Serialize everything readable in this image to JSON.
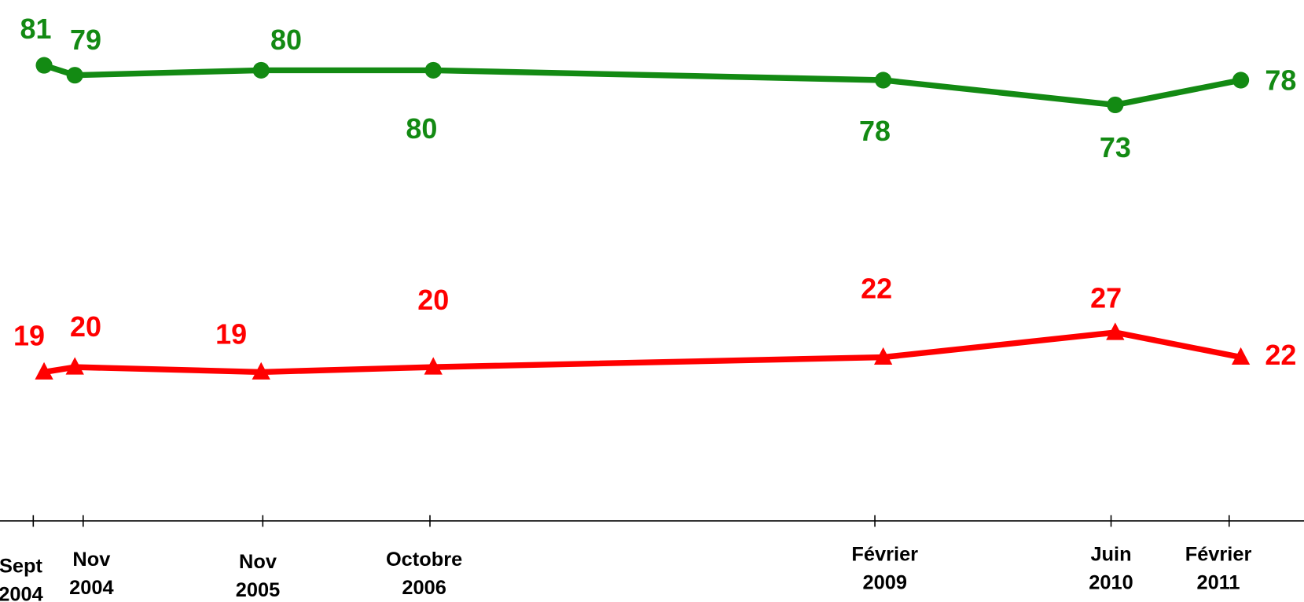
{
  "chart_data": {
    "type": "line",
    "categories": [
      "Sept 2004",
      "Nov 2004",
      "Nov 2005",
      "Octobre 2006",
      "Février 2009",
      "Juin 2010",
      "Février 2011"
    ],
    "series": [
      {
        "color": "#138a13",
        "marker": "circle",
        "values": [
          81,
          79,
          80,
          80,
          78,
          73,
          78
        ]
      },
      {
        "color": "#ff0000",
        "marker": "triangle",
        "values": [
          19,
          20,
          19,
          20,
          22,
          27,
          22
        ]
      }
    ]
  }
}
